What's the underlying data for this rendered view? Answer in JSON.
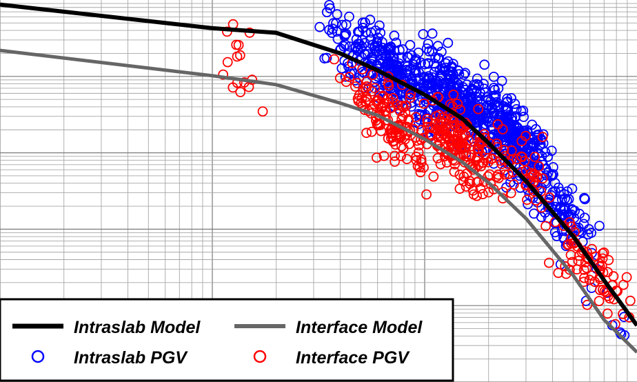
{
  "chart_data": {
    "type": "scatter",
    "title": "",
    "xlabel": "",
    "ylabel": "",
    "xscale": "log",
    "yscale": "log",
    "xlim": [
      1,
      1000
    ],
    "ylim": [
      0.01,
      1000
    ],
    "grid": true,
    "legend_position": "bottom-left",
    "colors": {
      "intraslab_model": "#000000",
      "interface_model": "#666666",
      "intraslab_pgv": "#0000ff",
      "interface_pgv": "#ff0000"
    },
    "legend": {
      "intraslab_model": "Intraslab Model",
      "interface_model": "Interface Model",
      "intraslab_pgv": "Intraslab PGV",
      "interface_pgv": "Interface PGV"
    },
    "model_curves": [
      {
        "name": "Intraslab Model",
        "x": [
          1,
          10,
          20,
          40,
          60,
          100,
          150,
          200,
          300,
          500,
          700,
          1000
        ],
        "y": [
          871,
          427,
          372,
          200,
          120,
          57.5,
          28.2,
          13.4,
          4.27,
          0.813,
          0.214,
          0.055
        ]
      },
      {
        "name": "Interface Model",
        "x": [
          1,
          10,
          20,
          40,
          60,
          100,
          150,
          200,
          300,
          500,
          700,
          1000
        ],
        "y": [
          219,
          102,
          78,
          44.7,
          30.9,
          15.1,
          7.59,
          4.07,
          1.38,
          0.25,
          0.065,
          0.0245
        ]
      }
    ],
    "scatter_clusters": [
      {
        "name": "Intraslab PGV",
        "clusters": [
          {
            "x": 45,
            "y": 200,
            "count": 60
          },
          {
            "x": 75,
            "y": 105,
            "count": 220
          },
          {
            "x": 140,
            "y": 50,
            "count": 300
          },
          {
            "x": 260,
            "y": 16,
            "count": 280
          },
          {
            "x": 430,
            "y": 2.0,
            "count": 100
          },
          {
            "x": 900,
            "y": 0.06,
            "count": 12
          }
        ]
      },
      {
        "name": "Interface PGV",
        "clusters": [
          {
            "x": 14,
            "y": 110,
            "count": 16
          },
          {
            "x": 70,
            "y": 24,
            "count": 140
          },
          {
            "x": 145,
            "y": 12,
            "count": 180
          },
          {
            "x": 280,
            "y": 5.5,
            "count": 50
          },
          {
            "x": 600,
            "y": 0.3,
            "count": 70
          },
          {
            "x": 900,
            "y": 0.04,
            "count": 10
          }
        ]
      }
    ]
  }
}
